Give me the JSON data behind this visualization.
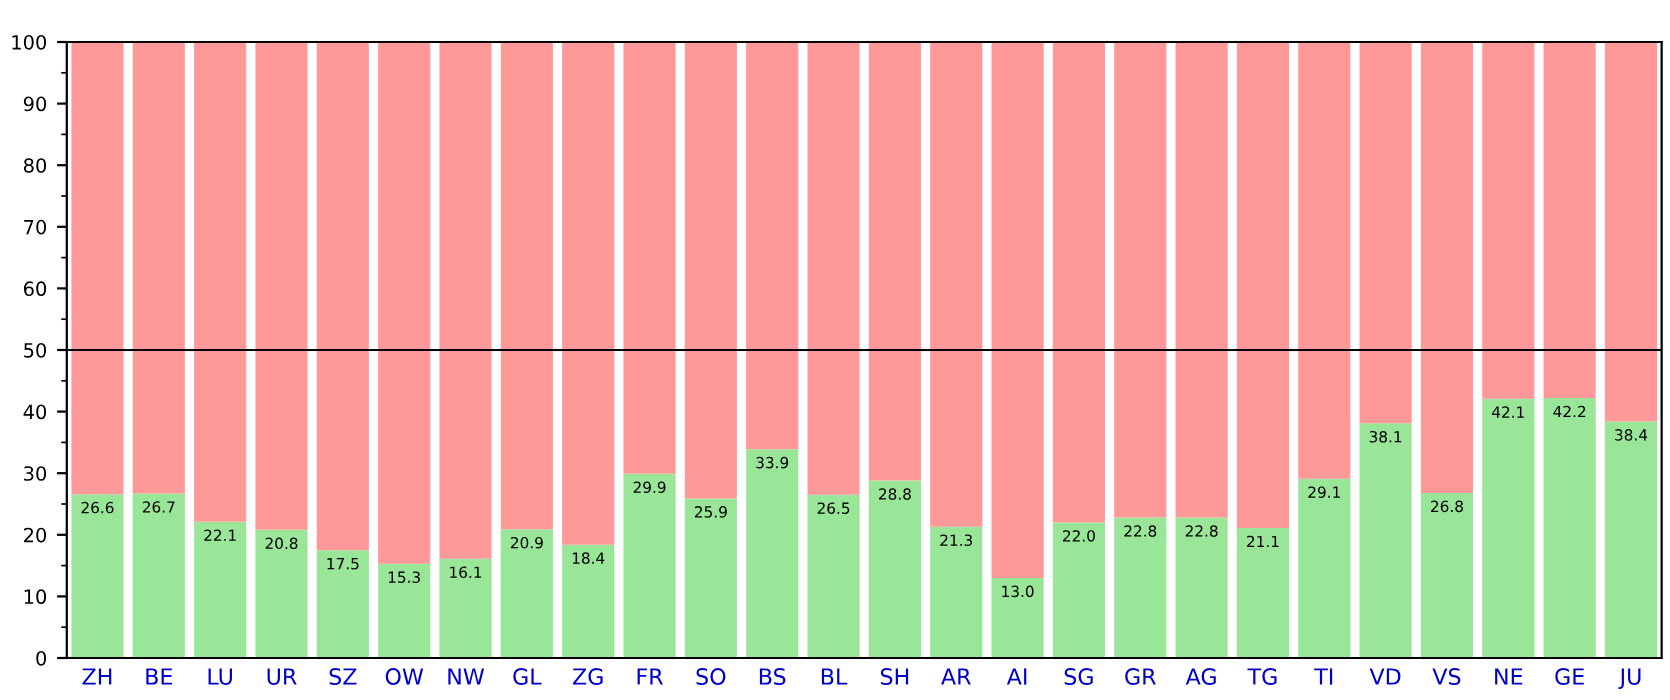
{
  "chart_data": {
    "type": "bar",
    "stacked": true,
    "categories": [
      "ZH",
      "BE",
      "LU",
      "UR",
      "SZ",
      "OW",
      "NW",
      "GL",
      "ZG",
      "FR",
      "SO",
      "BS",
      "BL",
      "SH",
      "AR",
      "AI",
      "SG",
      "GR",
      "AG",
      "TG",
      "TI",
      "VD",
      "VS",
      "NE",
      "GE",
      "JU"
    ],
    "series": [
      {
        "color": "#99e699",
        "values": [
          26.6,
          26.7,
          22.1,
          20.8,
          17.5,
          15.3,
          16.1,
          20.9,
          18.4,
          29.9,
          25.9,
          33.9,
          26.5,
          28.8,
          21.3,
          13.0,
          22.0,
          22.8,
          22.8,
          21.1,
          29.1,
          38.1,
          26.8,
          42.1,
          42.2,
          38.4
        ],
        "value_labels": [
          "26.6",
          "26.7",
          "22.1",
          "20.8",
          "17.5",
          "15.3",
          "16.1",
          "20.9",
          "18.4",
          "29.9",
          "25.9",
          "33.9",
          "26.5",
          "28.8",
          "21.3",
          "13.0",
          "22.0",
          "22.8",
          "22.8",
          "21.1",
          "29.1",
          "38.1",
          "26.8",
          "42.1",
          "42.2",
          "38.4"
        ]
      },
      {
        "color": "#ff9999",
        "values": [
          73.4,
          73.3,
          77.9,
          79.2,
          82.5,
          84.7,
          83.9,
          79.1,
          81.6,
          70.1,
          74.1,
          66.1,
          73.5,
          71.2,
          78.7,
          87.0,
          78.0,
          77.2,
          77.2,
          78.9,
          70.9,
          61.9,
          73.2,
          57.9,
          57.8,
          61.6
        ]
      }
    ],
    "ylim": [
      0,
      100
    ],
    "yticks": [
      0,
      10,
      20,
      30,
      40,
      50,
      60,
      70,
      80,
      90,
      100
    ],
    "ref_lines": [
      {
        "axis": "y",
        "value": 50,
        "color": "#000000"
      }
    ],
    "grid": false,
    "legend": false
  }
}
